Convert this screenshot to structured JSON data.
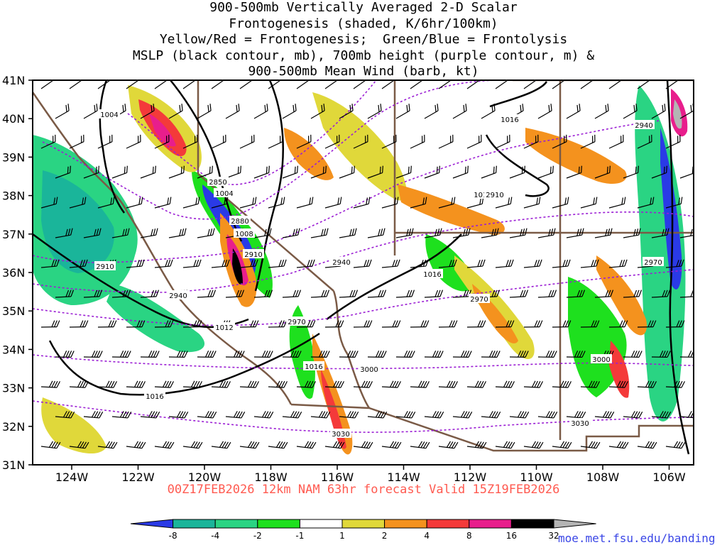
{
  "title_lines": [
    "900-500mb Vertically Averaged 2-D Scalar",
    "Frontogenesis (shaded, K/6hr/100km)",
    "Yellow/Red = Frontogenesis;  Green/Blue = Frontolysis",
    "MSLP (black contour, mb), 700mb height (purple contour, m) &",
    "900-500mb Mean Wind (barb, kt)"
  ],
  "lat_labels": [
    "41N",
    "40N",
    "39N",
    "38N",
    "37N",
    "36N",
    "35N",
    "34N",
    "33N",
    "32N",
    "31N"
  ],
  "lon_labels": [
    "124W",
    "122W",
    "120W",
    "118W",
    "116W",
    "114W",
    "112W",
    "110W",
    "108W",
    "106W"
  ],
  "mslp_labels": [
    "1004",
    "1004",
    "1008",
    "1012",
    "1016",
    "1016",
    "1016",
    "1016",
    "1016"
  ],
  "height_labels": [
    "2850",
    "2880",
    "2910",
    "2910",
    "2940",
    "2940",
    "2970",
    "2970",
    "2970",
    "3000",
    "3000",
    "3030",
    "3030",
    "2910",
    "2940"
  ],
  "footer": "00Z17FEB2026 12km NAM 63hr forecast Valid 15Z19FEB2026",
  "credit": "moe.met.fsu.edu/banding",
  "colorbar": {
    "labels": [
      "-8",
      "-4",
      "-2",
      "-1",
      "1",
      "2",
      "4",
      "8",
      "16",
      "32"
    ],
    "colors": [
      "#2a3ae6",
      "#1ab59a",
      "#2ad483",
      "#1ee01e",
      "#ffffff",
      "#e0d83a",
      "#f4921e",
      "#f43a3a",
      "#e81e8c",
      "#000000",
      "#b4b4b4"
    ]
  },
  "colors": {
    "mslp": "#000000",
    "height": "#9b1ed4",
    "borders": "#7a5a46",
    "footer": "#ff5a50",
    "credit": "#3a46e6"
  }
}
